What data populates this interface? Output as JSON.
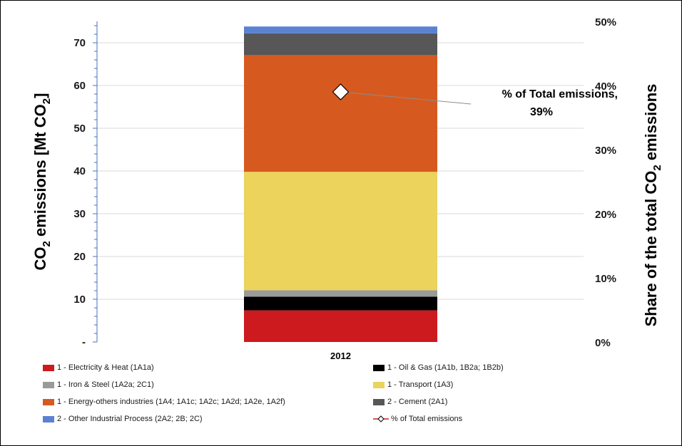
{
  "chart_data": {
    "type": "bar",
    "stacked": true,
    "categories": [
      "2012"
    ],
    "ylabel_left": {
      "main": "CO",
      "sub1": "2",
      "mid": " emissions [Mt CO",
      "sub2": "2",
      "end": "]"
    },
    "ylabel_right": {
      "main": "Share of the total CO",
      "sub": "2",
      "end": " emissions"
    },
    "ylim_left": [
      0,
      75
    ],
    "ylim_right": [
      0,
      0.5
    ],
    "left_ticks": [
      "-",
      "10",
      "20",
      "30",
      "40",
      "50",
      "60",
      "70"
    ],
    "right_ticks": [
      "0%",
      "10%",
      "20%",
      "30%",
      "40%",
      "50%"
    ],
    "grid": true,
    "legend_position": "bottom",
    "series": [
      {
        "name": "1 - Electricity & Heat (1A1a)",
        "values": [
          7.4
        ],
        "color": "#cc1a1f"
      },
      {
        "name": "1 - Oil & Gas (1A1b, 1B2a; 1B2b)",
        "values": [
          3.2
        ],
        "color": "#000000"
      },
      {
        "name": "1 - Iron & Steel (1A2a; 2C1)",
        "values": [
          1.5
        ],
        "color": "#9a9a9a"
      },
      {
        "name": "1 - Transport (1A3)",
        "values": [
          27.7
        ],
        "color": "#ebd35c"
      },
      {
        "name": "1 - Energy-others industries (1A4; 1A1c; 1A2c; 1A2d; 1A2e, 1A2f)",
        "values": [
          27.3
        ],
        "color": "#d65a20"
      },
      {
        "name": "2 - Cement (2A1)",
        "values": [
          5.1
        ],
        "color": "#575757"
      },
      {
        "name": "2 - Other Industrial Process (2A2; 2B; 2C)",
        "values": [
          1.6
        ],
        "color": "#5a82d2"
      }
    ],
    "line_series": {
      "name": "% of Total emissions",
      "values": [
        0.39
      ],
      "axis": "right"
    },
    "annotation": {
      "line1": "% of Total emissions,",
      "line2": "39%"
    }
  }
}
